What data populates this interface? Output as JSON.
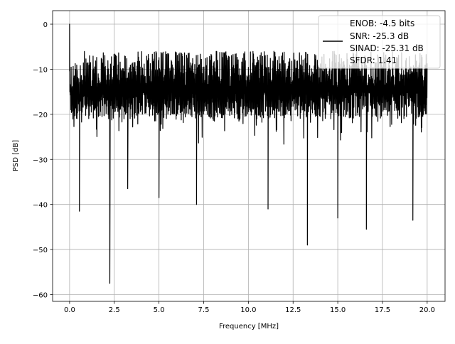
{
  "chart_data": {
    "type": "line",
    "title": "",
    "xlabel": "Frequency [MHz]",
    "ylabel": "PSD [dB]",
    "xlim": [
      -0.95,
      21.0
    ],
    "ylim": [
      -61.5,
      3.0
    ],
    "grid": true,
    "xticks": [
      0.0,
      2.5,
      5.0,
      7.5,
      10.0,
      12.5,
      15.0,
      17.5,
      20.0
    ],
    "xtick_labels": [
      "0.0",
      "2.5",
      "5.0",
      "7.5",
      "10.0",
      "12.5",
      "15.0",
      "17.5",
      "20.0"
    ],
    "yticks": [
      0,
      -10,
      -20,
      -30,
      -40,
      -50,
      -60
    ],
    "ytick_labels": [
      "0",
      "−10",
      "−20",
      "−30",
      "−40",
      "−50",
      "−60"
    ],
    "series": [
      {
        "name": "PSD",
        "color": "#000000",
        "description_x_range": [
          0.0,
          20.0
        ],
        "typical_upper_db": -6,
        "typical_lower_db": -27,
        "notable_points": [
          {
            "x": 0.0,
            "y": 0.0
          },
          {
            "x": 0.55,
            "y": -41.5
          },
          {
            "x": 2.25,
            "y": -57.5
          },
          {
            "x": 3.25,
            "y": -36.5
          },
          {
            "x": 5.0,
            "y": -38.5
          },
          {
            "x": 7.1,
            "y": -40.0
          },
          {
            "x": 11.1,
            "y": -41.0
          },
          {
            "x": 13.3,
            "y": -49.0
          },
          {
            "x": 15.0,
            "y": -43.0
          },
          {
            "x": 16.6,
            "y": -45.5
          },
          {
            "x": 19.2,
            "y": -43.5
          }
        ]
      }
    ],
    "legend": {
      "placement": "top-right",
      "entries": [
        "ENOB: -4.5 bits",
        "SNR: -25.3 dB",
        "SINAD: -25.31 dB",
        "SFDR: 1.41"
      ]
    }
  }
}
